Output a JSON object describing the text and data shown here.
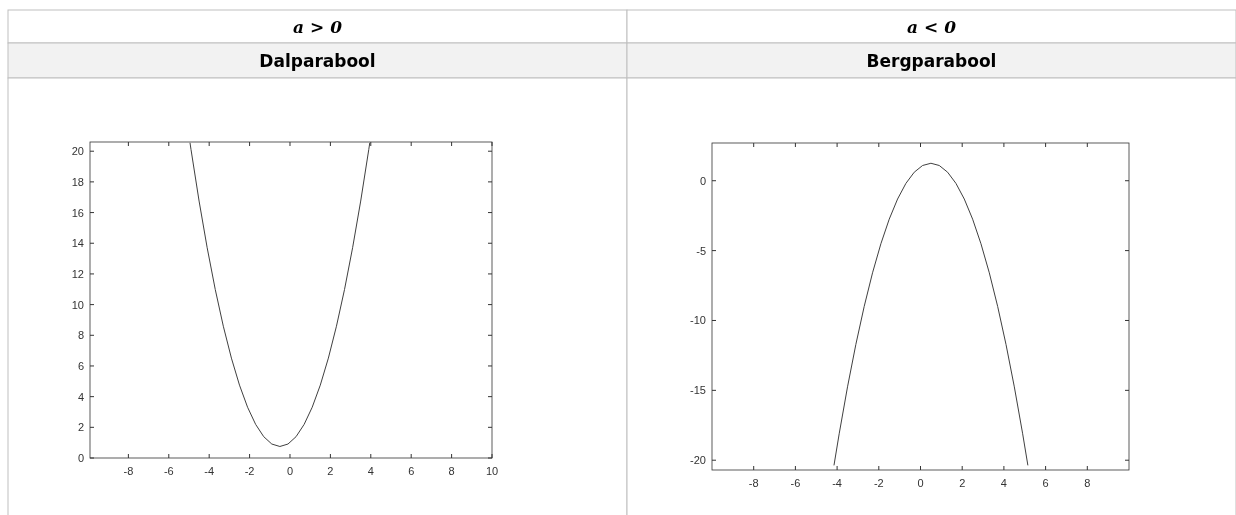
{
  "chart_data": [
    {
      "type": "line",
      "title": "a > 0",
      "subtitle": "Dalparabool",
      "xlim": [
        -9.9,
        10
      ],
      "ylim": [
        0,
        20.6
      ],
      "xticks": [
        -8,
        -6,
        -4,
        -2,
        0,
        2,
        4,
        6,
        8,
        10
      ],
      "yticks": [
        0,
        2,
        4,
        6,
        8,
        10,
        12,
        14,
        16,
        18,
        20
      ],
      "series": [
        {
          "color": "#404040",
          "x": [
            -4.95,
            -4.9,
            -4.5,
            -4.1,
            -3.7,
            -3.3,
            -2.9,
            -2.5,
            -2.1,
            -1.7,
            -1.3,
            -0.9,
            -0.5,
            -0.1,
            0.3,
            0.7,
            1.1,
            1.5,
            1.9,
            2.3,
            2.7,
            3.1,
            3.5,
            3.9,
            3.95
          ],
          "values": [
            20.55,
            20.11,
            16.75,
            13.71,
            10.99,
            8.59,
            6.51,
            4.75,
            3.31,
            2.19,
            1.39,
            0.91,
            0.75,
            0.91,
            1.39,
            2.19,
            3.31,
            4.75,
            6.51,
            8.59,
            10.99,
            13.71,
            16.75,
            20.11,
            20.55
          ]
        }
      ]
    },
    {
      "type": "line",
      "title": "a < 0",
      "subtitle": "Bergparabool",
      "xlim": [
        -10,
        10
      ],
      "ylim": [
        -20.7,
        2.7
      ],
      "xticks": [
        -8,
        -6,
        -4,
        -2,
        0,
        2,
        4,
        6,
        8
      ],
      "yticks": [
        -20,
        -15,
        -10,
        -5,
        0
      ],
      "series": [
        {
          "color": "#404040",
          "x": [
            -4.15,
            -3.9,
            -3.5,
            -3.1,
            -2.7,
            -2.3,
            -1.9,
            -1.5,
            -1.1,
            -0.7,
            -0.3,
            0.1,
            0.5,
            0.9,
            1.3,
            1.7,
            2.1,
            2.5,
            2.9,
            3.3,
            3.7,
            4.1,
            4.5,
            4.9,
            5.15
          ],
          "values": [
            -20.37,
            -18.11,
            -14.75,
            -11.71,
            -8.99,
            -6.59,
            -4.51,
            -2.75,
            -1.31,
            -0.19,
            0.61,
            1.09,
            1.25,
            1.09,
            0.61,
            -0.19,
            -1.31,
            -2.75,
            -4.51,
            -6.59,
            -8.99,
            -11.71,
            -14.75,
            -18.11,
            -20.37
          ]
        }
      ]
    }
  ]
}
